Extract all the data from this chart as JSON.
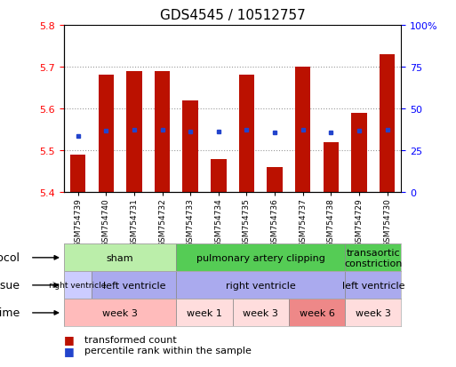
{
  "title": "GDS4545 / 10512757",
  "samples": [
    "GSM754739",
    "GSM754740",
    "GSM754731",
    "GSM754732",
    "GSM754733",
    "GSM754734",
    "GSM754735",
    "GSM754736",
    "GSM754737",
    "GSM754738",
    "GSM754729",
    "GSM754730"
  ],
  "bar_values": [
    5.49,
    5.68,
    5.69,
    5.69,
    5.62,
    5.48,
    5.68,
    5.46,
    5.7,
    5.52,
    5.59,
    5.73
  ],
  "bar_base": 5.4,
  "percentile_values": [
    5.535,
    5.548,
    5.55,
    5.55,
    5.546,
    5.546,
    5.549,
    5.543,
    5.549,
    5.543,
    5.547,
    5.55
  ],
  "ylim": [
    5.4,
    5.8
  ],
  "yticks_left": [
    5.4,
    5.5,
    5.6,
    5.7,
    5.8
  ],
  "yticks_right_labels": [
    "0",
    "25",
    "50",
    "75",
    "100%"
  ],
  "bar_color": "#bb1100",
  "percentile_color": "#2244cc",
  "grid_color": "#999999",
  "protocol_groups": [
    {
      "label": "sham",
      "start": 0,
      "end": 4,
      "color": "#bbeeaa"
    },
    {
      "label": "pulmonary artery clipping",
      "start": 4,
      "end": 10,
      "color": "#55cc55"
    },
    {
      "label": "transaortic\nconstriction",
      "start": 10,
      "end": 12,
      "color": "#55cc55"
    }
  ],
  "tissue_groups": [
    {
      "label": "right ventricle",
      "start": 0,
      "end": 1,
      "color": "#ccccff"
    },
    {
      "label": "left ventricle",
      "start": 1,
      "end": 4,
      "color": "#aaaaee"
    },
    {
      "label": "right ventricle",
      "start": 4,
      "end": 10,
      "color": "#aaaaee"
    },
    {
      "label": "left ventricle",
      "start": 10,
      "end": 12,
      "color": "#aaaaee"
    }
  ],
  "time_groups": [
    {
      "label": "week 3",
      "start": 0,
      "end": 4,
      "color": "#ffbbbb"
    },
    {
      "label": "week 1",
      "start": 4,
      "end": 6,
      "color": "#ffdddd"
    },
    {
      "label": "week 3",
      "start": 6,
      "end": 8,
      "color": "#ffdddd"
    },
    {
      "label": "week 6",
      "start": 8,
      "end": 10,
      "color": "#ee8888"
    },
    {
      "label": "week 3",
      "start": 10,
      "end": 12,
      "color": "#ffdddd"
    }
  ],
  "bg_color": "#ffffff",
  "title_fontsize": 11,
  "tick_fontsize": 8,
  "sample_fontsize": 6.5,
  "row_label_fontsize": 9,
  "annotation_fontsize": 8,
  "small_annotation_fontsize": 6.5
}
